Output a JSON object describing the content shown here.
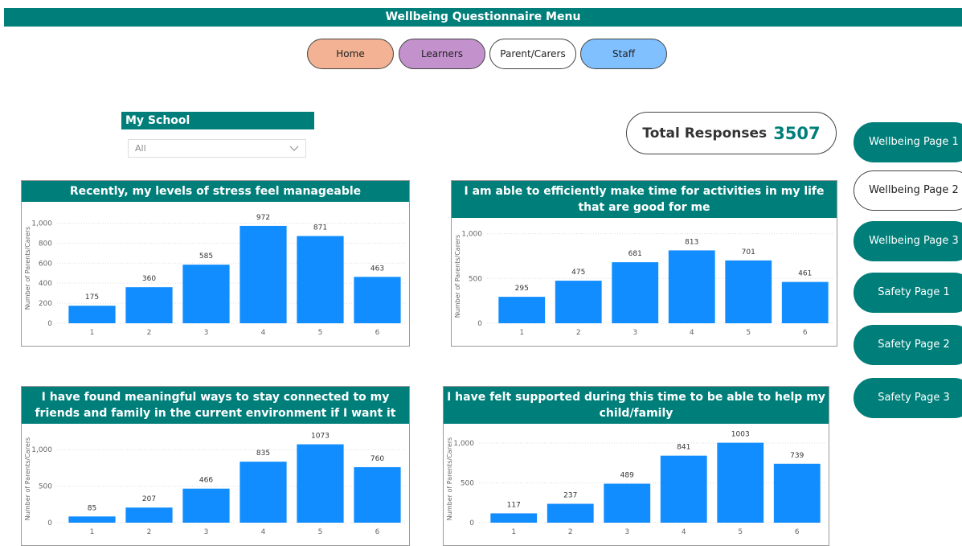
{
  "header": {
    "title": "Wellbeing Questionnaire Menu"
  },
  "nav": [
    "Home",
    "Learners",
    "Parent/Carers",
    "Staff"
  ],
  "filter": {
    "label": "My School",
    "value": "All"
  },
  "total": {
    "label": "Total Responses",
    "value": 3507
  },
  "side_buttons": [
    "Wellbeing Page 1",
    "Wellbeing Page 2",
    "Wellbeing Page 3",
    "Safety Page 1",
    "Safety Page 2",
    "Safety Page 3"
  ],
  "chart_data": [
    {
      "type": "bar",
      "title": "Recently, my levels of stress feel manageable",
      "y_label": "Number of Parents/Carers",
      "categories": [
        "1",
        "2",
        "3",
        "4",
        "5",
        "6"
      ],
      "values": [
        175,
        360,
        585,
        972,
        871,
        463
      ],
      "color": "#118dff",
      "ylim": [
        0,
        1100
      ],
      "yticks": [
        0,
        200,
        400,
        600,
        800,
        {
          "value": 1000,
          "label": "1,000"
        }
      ],
      "grid": true
    },
    {
      "type": "bar",
      "title": "I am able to efficiently make time for activities in my life that are good for me",
      "y_label": "Number of Parents/Carers",
      "categories": [
        "1",
        "2",
        "3",
        "4",
        "5",
        "6"
      ],
      "values": [
        295,
        475,
        681,
        813,
        701,
        461
      ],
      "color": "#118dff",
      "ylim": [
        0,
        1050
      ],
      "yticks": [
        0,
        500,
        {
          "value": 1000,
          "label": "1,000"
        }
      ],
      "grid": true
    },
    {
      "type": "bar",
      "title": "I have found meaningful ways to stay connected to my friends and family in the current environment if I want it",
      "y_label": "Number of Parents/Carers",
      "categories": [
        "1",
        "2",
        "3",
        "4",
        "5",
        "6"
      ],
      "values": [
        85,
        207,
        466,
        835,
        1073,
        760
      ],
      "color": "#118dff",
      "ylim": [
        0,
        1200
      ],
      "yticks": [
        0,
        500,
        {
          "value": 1000,
          "label": "1,000"
        }
      ],
      "grid": true
    },
    {
      "type": "bar",
      "title": "I have felt supported during this time to be able to help my child/family",
      "y_label": "Number of Parents/Carers",
      "categories": [
        "1",
        "2",
        "3",
        "4",
        "5",
        "6"
      ],
      "values": [
        117,
        237,
        489,
        841,
        1003,
        739
      ],
      "color": "#118dff",
      "ylim": [
        0,
        1100
      ],
      "yticks": [
        0,
        500,
        {
          "value": 1000,
          "label": "1,000"
        }
      ],
      "grid": true
    }
  ]
}
